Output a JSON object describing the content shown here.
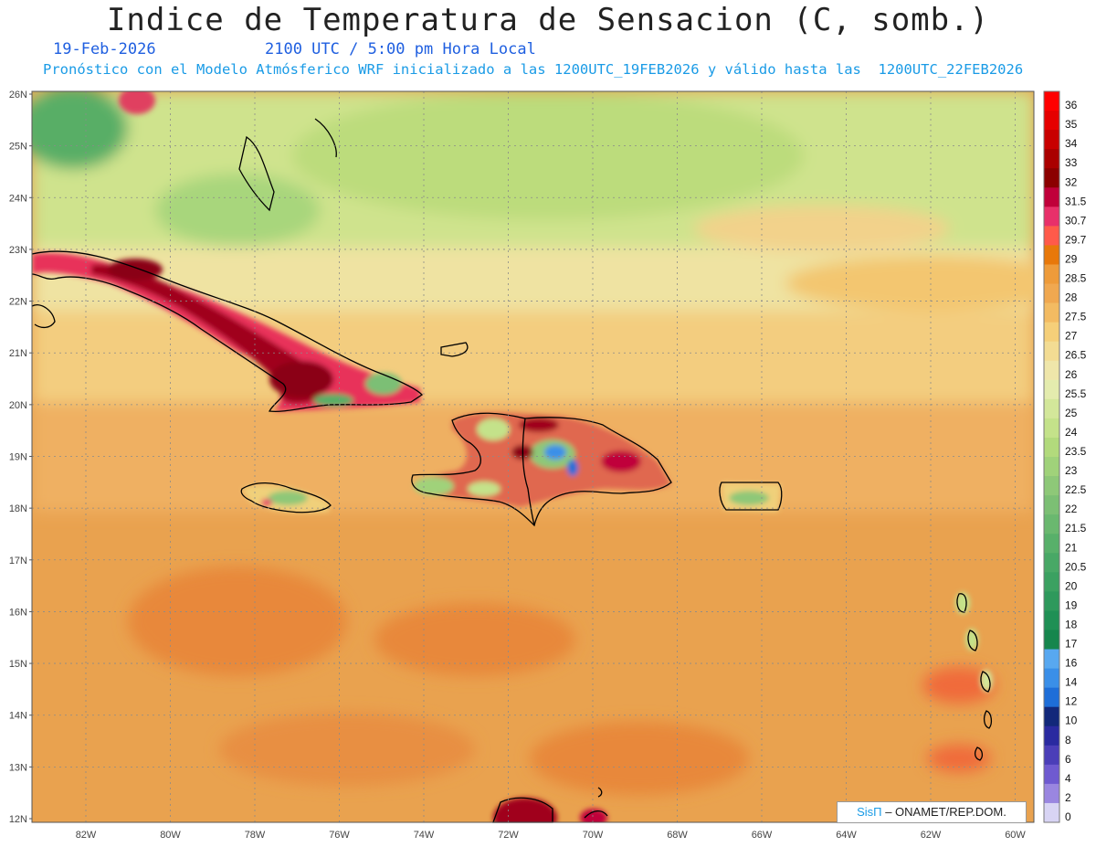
{
  "title": "Indice de Temperatura de Sensacion (C, somb.)",
  "date": "19-Feb-2026",
  "time": "2100 UTC / 5:00 pm Hora Local",
  "model_info": "Pronóstico con el Modelo Atmósferico WRF inicializado a las 1200UTC_19FEB2026 y válido hasta las  1200UTC_22FEB2026",
  "credit": {
    "brand": "SisΠ",
    "text": " – ONAMET/REP.DOM."
  },
  "map": {
    "lat_labels": [
      "26N",
      "25N",
      "24N",
      "23N",
      "22N",
      "21N",
      "20N",
      "19N",
      "18N",
      "17N",
      "16N",
      "15N",
      "14N",
      "13N",
      "12N"
    ],
    "lon_labels": [
      "82W",
      "80W",
      "78W",
      "76W",
      "74W",
      "72W",
      "70W",
      "68W",
      "66W",
      "64W",
      "62W",
      "60W"
    ],
    "colors": {
      "ocean_warm": "#e9a04f",
      "ocean_mid": "#efb563",
      "north": "#cde38a",
      "hot": "#a8001f"
    }
  },
  "colorbar": {
    "levels": [
      "36",
      "35",
      "34",
      "33",
      "32",
      "31.5",
      "30.7",
      "29.7",
      "29",
      "28.5",
      "28",
      "27.5",
      "27",
      "26.5",
      "26",
      "25.5",
      "25",
      "24",
      "23.5",
      "23",
      "22.5",
      "22",
      "21.5",
      "21",
      "20.5",
      "20",
      "19",
      "18",
      "17",
      "16",
      "14",
      "12",
      "10",
      "8",
      "6",
      "4",
      "2",
      "0"
    ],
    "colors": [
      "#ff0000",
      "#e60000",
      "#c80000",
      "#aa0000",
      "#8b0000",
      "#c0003a",
      "#e8306a",
      "#ff5a4a",
      "#e8780a",
      "#ee9b3a",
      "#f0a850",
      "#f3bb62",
      "#f5cf79",
      "#f3dc93",
      "#efe6aa",
      "#e4ecae",
      "#d3e79a",
      "#c4e28a",
      "#b2da7c",
      "#a0d27a",
      "#8ec878",
      "#7cbf74",
      "#6ab86f",
      "#58b06a",
      "#48a866",
      "#3ba161",
      "#2e995c",
      "#1f9055",
      "#16864d",
      "#58a8f0",
      "#3a8fe8",
      "#1e6ed8",
      "#12287a",
      "#2a2aa0",
      "#4b3eb8",
      "#6f5ad0",
      "#9a86e0",
      "#d8d4f4"
    ]
  }
}
